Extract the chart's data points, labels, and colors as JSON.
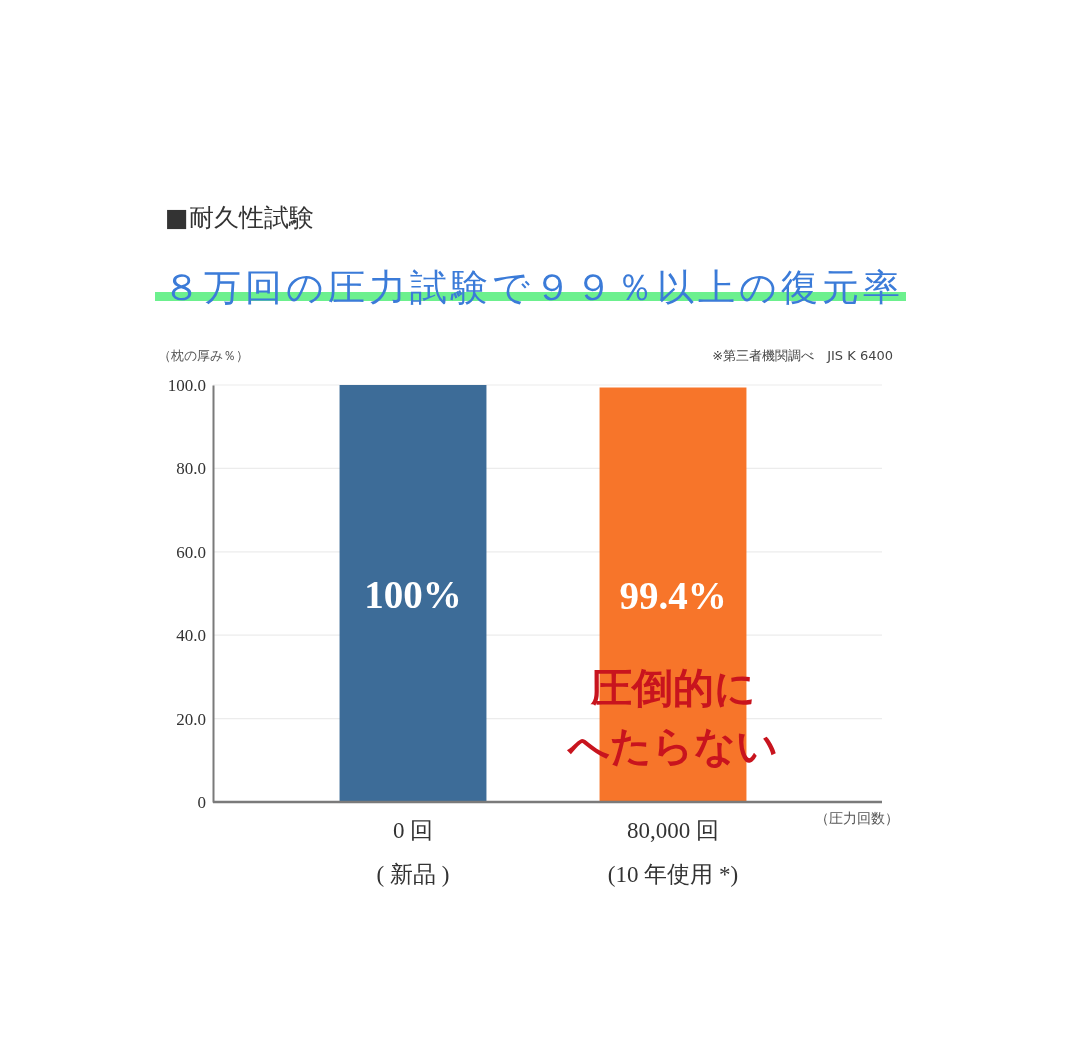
{
  "chart_data": {
    "type": "bar",
    "title": "■耐久性試験",
    "subtitle": "８万回の圧力試験で９９％以上の復元率",
    "ylabel": "（枕の厚み％）",
    "xlabel": "（圧力回数）",
    "annotations": [
      "※第三者機関調べ　JIS K 6400",
      "圧倒的に",
      "へたらない"
    ],
    "categories": [
      "0 回\n( 新品 )",
      "80,000 回\n(10 年使用 *)"
    ],
    "values": [
      100,
      99.4
    ],
    "colors": [
      "#3d6c98",
      "#f7752a"
    ],
    "value_labels": [
      "100%",
      "99.4%"
    ],
    "ylim": [
      0,
      100
    ],
    "yticks": [
      0,
      {
        "value": 20,
        "label": "20.0"
      },
      {
        "value": 40,
        "label": "40.0"
      },
      {
        "value": 60,
        "label": "60.0"
      },
      {
        "value": 80,
        "label": "80.0"
      },
      {
        "value": 100,
        "label": "100.0"
      }
    ],
    "grid": "y"
  }
}
